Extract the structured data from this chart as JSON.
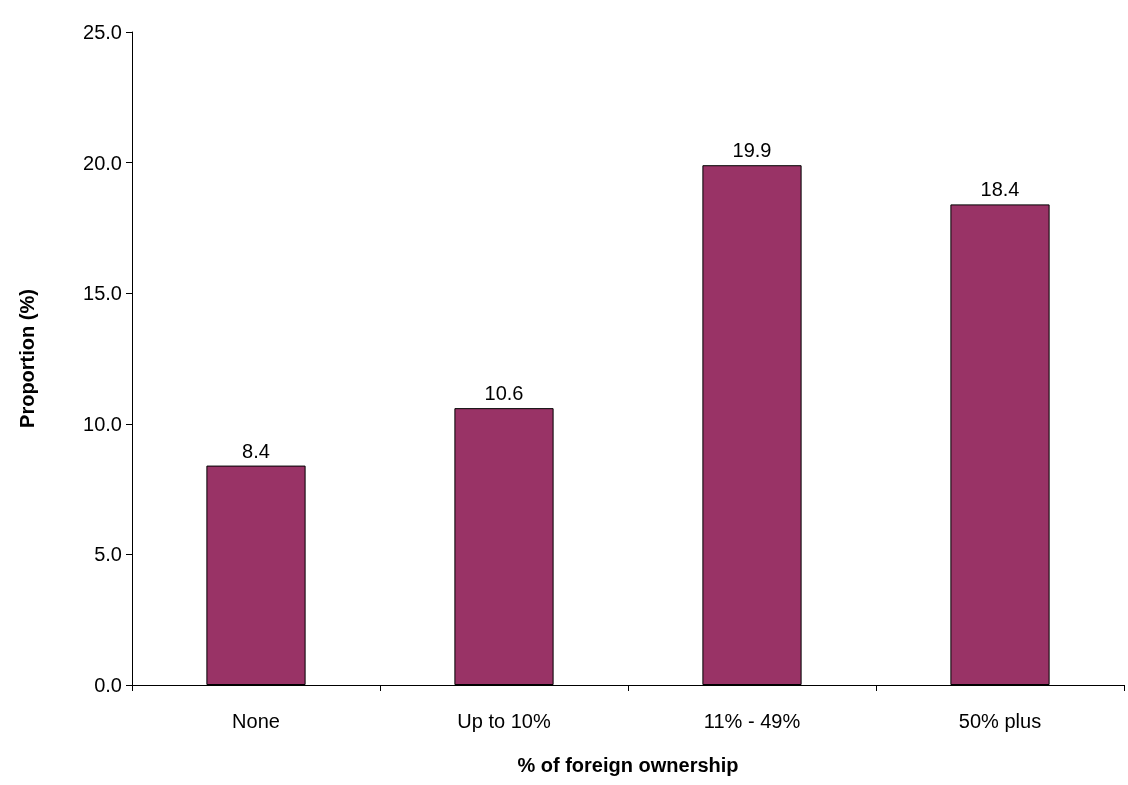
{
  "chart_data": {
    "type": "bar",
    "xlabel": "% of foreign ownership",
    "ylabel": "Proportion (%)",
    "categories": [
      "None",
      "Up to 10%",
      "11% - 49%",
      "50% plus"
    ],
    "values": [
      8.4,
      10.6,
      19.9,
      18.4
    ],
    "color": "#993366",
    "ylim": [
      0,
      25
    ],
    "yticks": [
      {
        "value": 0,
        "label": "0.0"
      },
      {
        "value": 5,
        "label": "5.0"
      },
      {
        "value": 10,
        "label": "10.0"
      },
      {
        "value": 15,
        "label": "15.0"
      },
      {
        "value": 20,
        "label": "20.0"
      },
      {
        "value": 25,
        "label": "25.0"
      }
    ],
    "data_labels": true
  }
}
